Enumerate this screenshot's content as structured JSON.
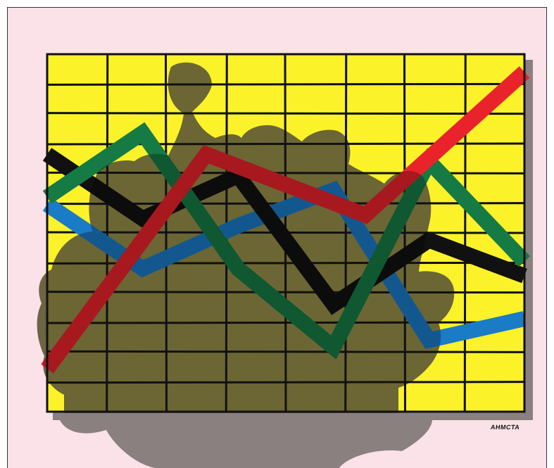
{
  "artwork": {
    "background_color": "#fbe1e8",
    "grid_fill": "#fbf22a",
    "grid_line_color": "#111111",
    "shadow_color": "#5e5a35",
    "cast_shadow_color": "#8a8080",
    "signature": "AHMCTA",
    "lines": [
      {
        "color_name": "red",
        "color": "#e8232b",
        "values": [
          0.12,
          0.72,
          0.55,
          0.95
        ]
      },
      {
        "color_name": "green",
        "color": "#167a44",
        "values": [
          0.6,
          0.78,
          0.4,
          0.18,
          0.7,
          0.42
        ]
      },
      {
        "color_name": "black",
        "color": "#111111",
        "values": [
          0.72,
          0.54,
          0.66,
          0.3,
          0.48,
          0.38
        ]
      },
      {
        "color_name": "blue",
        "color": "#1a7bc6",
        "values": [
          0.58,
          0.4,
          0.52,
          0.62,
          0.2,
          0.26
        ]
      }
    ]
  }
}
